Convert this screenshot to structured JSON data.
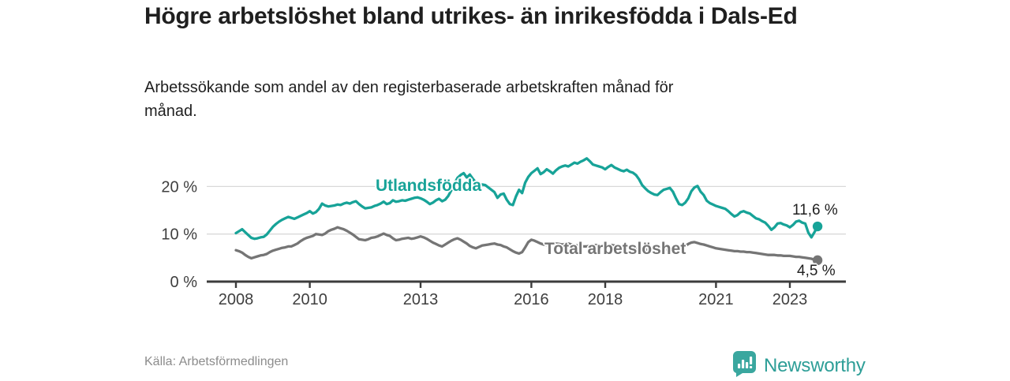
{
  "header": {
    "title": "Högre arbetslöshet bland utrikes- än inrikesfödda i Dals-Ed",
    "subtitle": "Arbetssökande som andel av den registerbaserade arbetskraften månad för månad."
  },
  "footer": {
    "source": "Källa: Arbetsförmedlingen",
    "brand": "Newsworthy"
  },
  "colors": {
    "accent_teal": "#17A398",
    "series_gray": "#757575",
    "axis": "#3C3C3C",
    "grid": "#D9D9D9",
    "tick_text": "#3F3F3F",
    "value_text": "#1f1f1f",
    "source_text": "#8C8C8C",
    "logo_teal": "#3AA79F"
  },
  "chart_data": {
    "type": "line",
    "title": "Högre arbetslöshet bland utrikes- än inrikesfödda i Dals-Ed",
    "subtitle": "Arbetssökande som andel av den registerbaserade arbetskraften månad för månad.",
    "xlabel": "",
    "ylabel": "",
    "x_start_year": 2008.0,
    "x_step_years": 0.0833333,
    "x_ticks": [
      2008,
      2010,
      2013,
      2016,
      2018,
      2021,
      2023
    ],
    "y_ticks": [
      {
        "value": 0,
        "label": "0 %"
      },
      {
        "value": 10,
        "label": "10 %"
      },
      {
        "value": 20,
        "label": "20 %"
      }
    ],
    "ylim": [
      0,
      27.5
    ],
    "grid": "horizontal",
    "legend": "inline-labels",
    "series": [
      {
        "name": "Utlandsfödda",
        "color": "#17A398",
        "end_label": "11,6 %",
        "end_value": 11.6,
        "values": [
          10.2,
          10.6,
          11.0,
          10.4,
          9.8,
          9.2,
          9.0,
          9.1,
          9.3,
          9.4,
          9.9,
          10.7,
          11.5,
          12.1,
          12.6,
          13.0,
          13.3,
          13.6,
          13.4,
          13.2,
          13.5,
          13.8,
          14.1,
          14.4,
          14.8,
          14.3,
          14.6,
          15.3,
          16.4,
          16.0,
          15.8,
          15.9,
          16.0,
          16.2,
          16.1,
          16.4,
          16.6,
          16.4,
          16.7,
          16.9,
          16.3,
          15.8,
          15.4,
          15.5,
          15.6,
          15.9,
          16.1,
          16.4,
          16.8,
          16.3,
          16.5,
          17.1,
          16.8,
          16.9,
          17.1,
          17.0,
          17.2,
          17.4,
          17.6,
          17.7,
          17.5,
          17.2,
          16.8,
          16.3,
          16.6,
          17.1,
          17.4,
          16.9,
          17.2,
          18.0,
          19.2,
          20.6,
          21.8,
          22.4,
          22.8,
          21.9,
          22.5,
          21.6,
          20.8,
          20.1,
          20.4,
          20.3,
          19.8,
          19.3,
          18.8,
          17.6,
          18.3,
          18.5,
          17.2,
          16.3,
          16.1,
          17.9,
          19.3,
          18.6,
          20.8,
          22.0,
          22.8,
          23.3,
          23.8,
          22.6,
          23.0,
          23.6,
          23.2,
          22.7,
          23.4,
          23.9,
          24.2,
          24.4,
          24.2,
          24.6,
          25.0,
          24.8,
          25.2,
          25.5,
          25.9,
          25.3,
          24.6,
          24.4,
          24.2,
          24.0,
          23.6,
          24.1,
          24.5,
          24.0,
          23.7,
          23.4,
          23.2,
          23.5,
          23.1,
          22.9,
          22.4,
          21.5,
          20.3,
          19.6,
          19.0,
          18.6,
          18.3,
          18.2,
          18.8,
          19.3,
          19.5,
          19.7,
          18.9,
          17.5,
          16.3,
          16.1,
          16.6,
          17.5,
          19.0,
          19.8,
          20.1,
          18.9,
          18.2,
          17.0,
          16.5,
          16.2,
          15.9,
          15.7,
          15.5,
          15.3,
          14.8,
          14.2,
          13.7,
          14.0,
          14.6,
          14.8,
          14.5,
          14.3,
          13.8,
          13.3,
          13.1,
          12.7,
          12.4,
          11.7,
          10.9,
          11.4,
          12.2,
          12.3,
          12.0,
          11.8,
          11.4,
          11.9,
          12.6,
          12.8,
          12.4,
          12.2,
          10.3,
          9.3,
          10.4,
          11.6
        ]
      },
      {
        "name": "Total arbetslöshet",
        "color": "#757575",
        "end_label": "4,5 %",
        "end_value": 4.5,
        "values": [
          6.6,
          6.4,
          6.1,
          5.6,
          5.2,
          4.9,
          5.1,
          5.3,
          5.5,
          5.6,
          5.8,
          6.2,
          6.5,
          6.7,
          6.9,
          7.1,
          7.2,
          7.4,
          7.4,
          7.7,
          8.0,
          8.5,
          8.9,
          9.2,
          9.4,
          9.6,
          10.0,
          9.9,
          9.8,
          10.1,
          10.6,
          10.9,
          11.1,
          11.4,
          11.2,
          11.0,
          10.7,
          10.3,
          9.9,
          9.4,
          8.9,
          8.8,
          8.7,
          8.9,
          9.2,
          9.3,
          9.5,
          9.8,
          10.1,
          9.8,
          9.6,
          9.1,
          8.7,
          8.8,
          9.0,
          9.1,
          9.2,
          9.0,
          9.1,
          9.3,
          9.5,
          9.3,
          9.0,
          8.6,
          8.2,
          7.9,
          7.6,
          7.4,
          7.8,
          8.2,
          8.6,
          8.9,
          9.1,
          8.8,
          8.4,
          8.0,
          7.5,
          7.2,
          7.0,
          7.3,
          7.6,
          7.7,
          7.8,
          7.9,
          8.0,
          7.8,
          7.7,
          7.4,
          7.2,
          6.8,
          6.4,
          6.1,
          5.9,
          6.2,
          7.2,
          8.3,
          8.8,
          8.6,
          8.3,
          8.0,
          7.8,
          7.7,
          7.9,
          8.1,
          8.0,
          7.9,
          7.8,
          7.9,
          8.0,
          7.8,
          7.7,
          7.6,
          7.5,
          7.4,
          7.4,
          7.5,
          7.6,
          7.7,
          7.6,
          7.5,
          7.5,
          7.6,
          7.7,
          7.6,
          7.5,
          7.4,
          7.3,
          7.4,
          7.3,
          7.2,
          7.1,
          7.0,
          7.0,
          6.8,
          6.7,
          6.6,
          6.6,
          6.5,
          6.6,
          6.7,
          6.8,
          6.8,
          6.9,
          7.0,
          7.1,
          7.2,
          7.5,
          7.9,
          8.2,
          8.3,
          8.1,
          7.9,
          7.8,
          7.6,
          7.4,
          7.2,
          7.0,
          6.9,
          6.8,
          6.7,
          6.6,
          6.5,
          6.4,
          6.4,
          6.3,
          6.3,
          6.2,
          6.2,
          6.1,
          6.0,
          5.9,
          5.8,
          5.7,
          5.6,
          5.6,
          5.6,
          5.5,
          5.5,
          5.4,
          5.4,
          5.4,
          5.3,
          5.2,
          5.2,
          5.1,
          5.0,
          4.9,
          4.8,
          4.6,
          4.5
        ]
      }
    ]
  }
}
